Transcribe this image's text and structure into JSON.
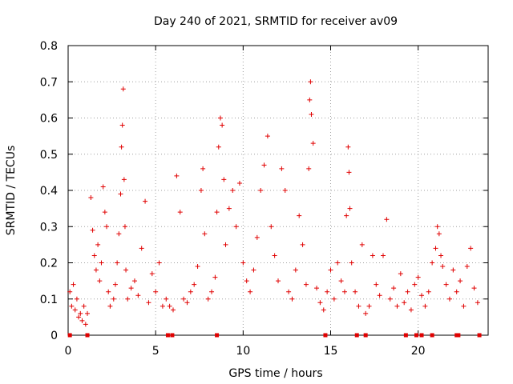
{
  "chart_data": {
    "type": "scatter",
    "title": "Day 240 of 2021, SRMTID for receiver av09",
    "xlabel": "GPS time / hours",
    "ylabel": "SRMTID / TECUs",
    "xlim": [
      0,
      24
    ],
    "ylim": [
      0,
      0.8
    ],
    "xticks": [
      0,
      5,
      10,
      15,
      20
    ],
    "yticks": [
      0,
      0.1,
      0.2,
      0.3,
      0.4,
      0.5,
      0.6,
      0.7,
      0.8
    ],
    "xtick_labels": [
      "0",
      "5",
      "10",
      "15",
      "20"
    ],
    "ytick_labels": [
      "0",
      "0.1",
      "0.2",
      "0.3",
      "0.4",
      "0.5",
      "0.6",
      "0.7",
      "0.8"
    ],
    "grid": true,
    "color": "#e00000",
    "marker": "+",
    "series": [
      {
        "name": "SRMTID",
        "x": [
          0.1,
          0.2,
          0.3,
          0.4,
          0.5,
          0.6,
          0.7,
          0.8,
          0.9,
          1.0,
          1.1,
          1.3,
          1.4,
          1.5,
          1.6,
          1.7,
          1.8,
          1.9,
          2.0,
          2.1,
          2.2,
          2.3,
          2.4,
          2.6,
          2.7,
          2.8,
          2.9,
          3.0,
          3.05,
          3.1,
          3.15,
          3.2,
          3.25,
          3.3,
          3.4,
          3.6,
          3.8,
          4.0,
          4.2,
          4.4,
          4.6,
          4.8,
          5.0,
          5.2,
          5.4,
          5.6,
          5.8,
          6.0,
          6.2,
          6.4,
          6.6,
          6.8,
          7.0,
          7.2,
          7.4,
          7.6,
          7.7,
          7.8,
          8.0,
          8.2,
          8.4,
          8.5,
          8.6,
          8.7,
          8.8,
          8.9,
          9.0,
          9.2,
          9.4,
          9.6,
          9.8,
          10.0,
          10.2,
          10.4,
          10.6,
          10.8,
          11.0,
          11.2,
          11.4,
          11.6,
          11.8,
          12.0,
          12.2,
          12.4,
          12.6,
          12.8,
          13.0,
          13.2,
          13.4,
          13.6,
          13.75,
          13.8,
          13.85,
          13.9,
          14.0,
          14.2,
          14.4,
          14.6,
          14.8,
          15.0,
          15.2,
          15.4,
          15.6,
          15.8,
          15.9,
          16.0,
          16.05,
          16.1,
          16.2,
          16.4,
          16.6,
          16.8,
          17.0,
          17.2,
          17.4,
          17.6,
          17.8,
          18.0,
          18.2,
          18.4,
          18.6,
          18.8,
          19.0,
          19.2,
          19.4,
          19.6,
          19.8,
          20.0,
          20.2,
          20.4,
          20.6,
          20.8,
          21.0,
          21.1,
          21.2,
          21.3,
          21.4,
          21.6,
          21.8,
          22.0,
          22.2,
          22.4,
          22.6,
          22.8,
          23.0,
          23.2,
          23.4
        ],
        "y": [
          0.12,
          0.08,
          0.14,
          0.07,
          0.1,
          0.05,
          0.06,
          0.04,
          0.08,
          0.03,
          0.06,
          0.38,
          0.29,
          0.22,
          0.18,
          0.25,
          0.15,
          0.2,
          0.41,
          0.34,
          0.3,
          0.12,
          0.08,
          0.1,
          0.14,
          0.2,
          0.28,
          0.39,
          0.52,
          0.58,
          0.68,
          0.43,
          0.3,
          0.18,
          0.1,
          0.13,
          0.15,
          0.11,
          0.24,
          0.37,
          0.09,
          0.17,
          0.12,
          0.2,
          0.08,
          0.1,
          0.08,
          0.07,
          0.44,
          0.34,
          0.1,
          0.09,
          0.12,
          0.14,
          0.19,
          0.4,
          0.46,
          0.28,
          0.1,
          0.12,
          0.16,
          0.34,
          0.52,
          0.6,
          0.58,
          0.43,
          0.25,
          0.35,
          0.4,
          0.3,
          0.42,
          0.2,
          0.15,
          0.12,
          0.18,
          0.27,
          0.4,
          0.47,
          0.55,
          0.3,
          0.22,
          0.15,
          0.46,
          0.4,
          0.12,
          0.1,
          0.18,
          0.33,
          0.25,
          0.14,
          0.46,
          0.65,
          0.7,
          0.61,
          0.53,
          0.13,
          0.09,
          0.07,
          0.12,
          0.18,
          0.1,
          0.2,
          0.15,
          0.12,
          0.33,
          0.52,
          0.45,
          0.35,
          0.2,
          0.12,
          0.08,
          0.25,
          0.06,
          0.08,
          0.22,
          0.14,
          0.11,
          0.22,
          0.32,
          0.1,
          0.13,
          0.08,
          0.17,
          0.09,
          0.12,
          0.07,
          0.14,
          0.16,
          0.11,
          0.08,
          0.12,
          0.2,
          0.24,
          0.3,
          0.28,
          0.22,
          0.19,
          0.14,
          0.1,
          0.18,
          0.12,
          0.15,
          0.08,
          0.19,
          0.24,
          0.13,
          0.09
        ]
      }
    ],
    "gap_flags_x": [
      0.1,
      1.1,
      5.7,
      5.95,
      8.5,
      14.7,
      16.5,
      17.0,
      19.3,
      19.9,
      20.2,
      20.8,
      22.2,
      22.3,
      23.5
    ]
  }
}
